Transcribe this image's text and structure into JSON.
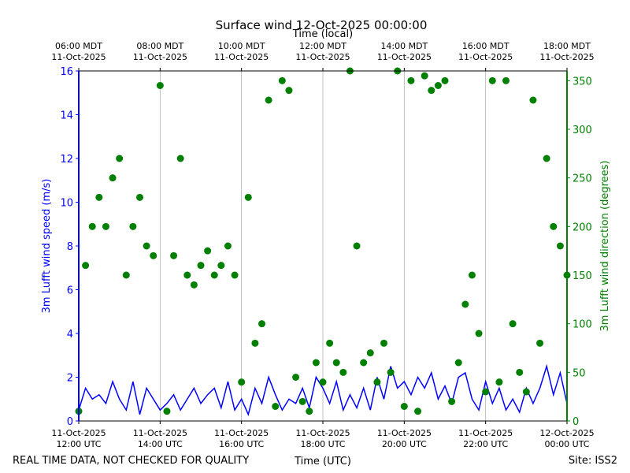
{
  "chart_data": {
    "type": "line",
    "title": "Surface wind 12-Oct-2025 00:00:00",
    "x2label": "Time (local)",
    "xlabel": "Time (UTC)",
    "ylabel": "3m Lufft wind speed (m/s)",
    "y2label": "3m Lufft wind direction (degrees)",
    "footer_left": "REAL TIME DATA, NOT CHECKED FOR QUALITY",
    "footer_right": "Site: ISS2",
    "x": [
      "2025-10-11 12:00",
      "2025-10-11 12:10",
      "2025-10-11 12:20",
      "2025-10-11 12:30",
      "2025-10-11 12:40",
      "2025-10-11 12:50",
      "2025-10-11 13:00",
      "2025-10-11 13:10",
      "2025-10-11 13:20",
      "2025-10-11 13:30",
      "2025-10-11 13:40",
      "2025-10-11 13:50",
      "2025-10-11 14:00",
      "2025-10-11 14:10",
      "2025-10-11 14:20",
      "2025-10-11 14:30",
      "2025-10-11 14:40",
      "2025-10-11 14:50",
      "2025-10-11 15:00",
      "2025-10-11 15:10",
      "2025-10-11 15:20",
      "2025-10-11 15:30",
      "2025-10-11 15:40",
      "2025-10-11 15:50",
      "2025-10-11 16:00",
      "2025-10-11 16:10",
      "2025-10-11 16:20",
      "2025-10-11 16:30",
      "2025-10-11 16:40",
      "2025-10-11 16:50",
      "2025-10-11 17:00",
      "2025-10-11 17:10",
      "2025-10-11 17:20",
      "2025-10-11 17:30",
      "2025-10-11 17:40",
      "2025-10-11 17:50",
      "2025-10-11 18:00",
      "2025-10-11 18:10",
      "2025-10-11 18:20",
      "2025-10-11 18:30",
      "2025-10-11 18:40",
      "2025-10-11 18:50",
      "2025-10-11 19:00",
      "2025-10-11 19:10",
      "2025-10-11 19:20",
      "2025-10-11 19:30",
      "2025-10-11 19:40",
      "2025-10-11 19:50",
      "2025-10-11 20:00",
      "2025-10-11 20:10",
      "2025-10-11 20:20",
      "2025-10-11 20:30",
      "2025-10-11 20:40",
      "2025-10-11 20:50",
      "2025-10-11 21:00",
      "2025-10-11 21:10",
      "2025-10-11 21:20",
      "2025-10-11 21:30",
      "2025-10-11 21:40",
      "2025-10-11 21:50",
      "2025-10-11 22:00",
      "2025-10-11 22:10",
      "2025-10-11 22:20",
      "2025-10-11 22:30",
      "2025-10-11 22:40",
      "2025-10-11 22:50",
      "2025-10-11 23:00",
      "2025-10-11 23:10",
      "2025-10-11 23:20",
      "2025-10-11 23:30",
      "2025-10-11 23:40",
      "2025-10-11 23:50",
      "2025-10-12 00:00"
    ],
    "xlim": [
      "2025-10-11 12:00",
      "2025-10-12 00:00"
    ],
    "xticks": [
      {
        "value": "2025-10-11 12:00",
        "label": "11-Oct-2025\n12:00 UTC"
      },
      {
        "value": "2025-10-11 14:00",
        "label": "11-Oct-2025\n14:00 UTC"
      },
      {
        "value": "2025-10-11 16:00",
        "label": "11-Oct-2025\n16:00 UTC"
      },
      {
        "value": "2025-10-11 18:00",
        "label": "11-Oct-2025\n18:00 UTC"
      },
      {
        "value": "2025-10-11 20:00",
        "label": "11-Oct-2025\n20:00 UTC"
      },
      {
        "value": "2025-10-11 22:00",
        "label": "11-Oct-2025\n22:00 UTC"
      },
      {
        "value": "2025-10-12 00:00",
        "label": "12-Oct-2025\n00:00 UTC"
      }
    ],
    "x2ticks": [
      {
        "value": "2025-10-11 12:00",
        "label": "06:00 MDT\n11-Oct-2025"
      },
      {
        "value": "2025-10-11 14:00",
        "label": "08:00 MDT\n11-Oct-2025"
      },
      {
        "value": "2025-10-11 16:00",
        "label": "10:00 MDT\n11-Oct-2025"
      },
      {
        "value": "2025-10-11 18:00",
        "label": "12:00 MDT\n11-Oct-2025"
      },
      {
        "value": "2025-10-11 20:00",
        "label": "14:00 MDT\n11-Oct-2025"
      },
      {
        "value": "2025-10-11 22:00",
        "label": "16:00 MDT\n11-Oct-2025"
      },
      {
        "value": "2025-10-12 00:00",
        "label": "18:00 MDT\n11-Oct-2025"
      }
    ],
    "ylim": [
      0,
      16
    ],
    "yticks": [
      0,
      2,
      4,
      6,
      8,
      10,
      12,
      14,
      16
    ],
    "y2lim": [
      0,
      360
    ],
    "y2ticks": [
      0,
      50,
      100,
      150,
      200,
      250,
      300,
      350
    ],
    "grid": "x",
    "series": [
      {
        "type": "line",
        "color": "#0000ff",
        "values": [
          0.5,
          1.5,
          1,
          1.2,
          0.8,
          1.8,
          1,
          0.5,
          1.8,
          0.3,
          1.5,
          1,
          0.5,
          0.8,
          1.2,
          0.5,
          1,
          1.5,
          0.8,
          1.2,
          1.5,
          0.6,
          1.8,
          0.5,
          1.0,
          0.3,
          1.5,
          0.8,
          2.0,
          1.2,
          0.5,
          1.0,
          0.8,
          1.5,
          0.6,
          2.0,
          1.5,
          0.8,
          1.8,
          0.5,
          1.2,
          0.6,
          1.5,
          0.5,
          2.0,
          1.0,
          2.5,
          1.5,
          1.8,
          1.2,
          2.0,
          1.5,
          2.2,
          1.0,
          1.6,
          0.8,
          2.0,
          2.2,
          1.0,
          0.5,
          1.8,
          0.8,
          1.5,
          0.5,
          1.0,
          0.4,
          1.5,
          0.8,
          1.5,
          2.5,
          1.2,
          2.2,
          0.8
        ]
      },
      {
        "type": "scatter",
        "axis": "y2",
        "color": "#008000",
        "values": [
          10,
          160,
          200,
          230,
          200,
          250,
          270,
          150,
          200,
          230,
          180,
          170,
          345,
          10,
          170,
          270,
          150,
          140,
          160,
          175,
          150,
          160,
          180,
          150,
          40,
          230,
          80,
          100,
          330,
          15,
          350,
          340,
          45,
          20,
          10,
          60,
          40,
          80,
          60,
          50,
          360,
          180,
          60,
          70,
          40,
          80,
          50,
          360,
          15,
          350,
          10,
          355,
          340,
          345,
          350,
          20,
          60,
          120,
          150,
          90,
          30,
          350,
          40,
          350,
          100,
          50,
          30,
          330,
          80,
          270,
          200,
          180,
          150
        ]
      }
    ]
  }
}
